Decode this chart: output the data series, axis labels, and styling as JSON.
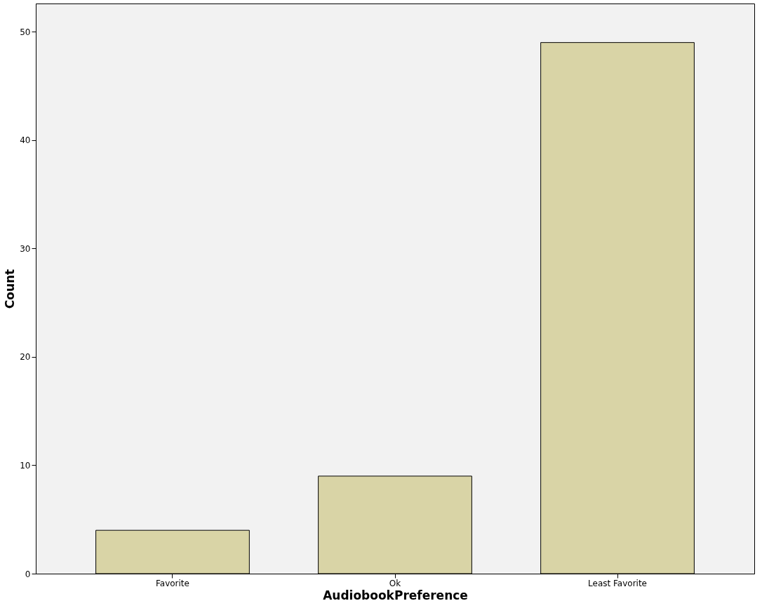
{
  "chart_data": {
    "type": "bar",
    "xlabel": "AudiobookPreference",
    "ylabel": "Count",
    "categories": [
      "Favorite",
      "Ok",
      "Least Favorite"
    ],
    "values": [
      4,
      9,
      49
    ],
    "color": "#d9d4a6",
    "ylim": [
      0,
      52.6
    ],
    "yticks": [
      0,
      10,
      20,
      30,
      40,
      50
    ],
    "grid": false
  }
}
